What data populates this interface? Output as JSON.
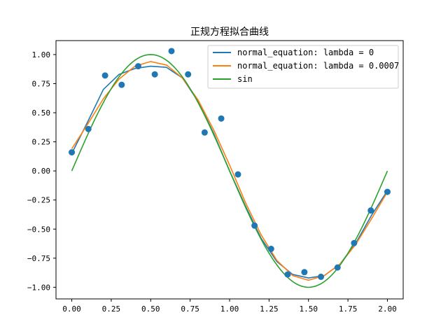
{
  "chart_data": {
    "type": "line",
    "title": "正规方程拟合曲线",
    "xlabel": "",
    "ylabel": "",
    "xlim": [
      -0.1,
      2.1
    ],
    "ylim": [
      -1.1,
      1.12
    ],
    "grid": false,
    "legend_position": "top-right",
    "x_ticks": [
      0.0,
      0.25,
      0.5,
      0.75,
      1.0,
      1.25,
      1.5,
      1.75,
      2.0
    ],
    "x_tick_labels": [
      "0.00",
      "0.25",
      "0.50",
      "0.75",
      "1.00",
      "1.25",
      "1.50",
      "1.75",
      "2.00"
    ],
    "y_ticks": [
      -1.0,
      -0.75,
      -0.5,
      -0.25,
      0.0,
      0.25,
      0.5,
      0.75,
      1.0
    ],
    "y_tick_labels": [
      "−1.00",
      "−0.75",
      "−0.50",
      "−0.25",
      "0.00",
      "0.25",
      "0.50",
      "0.75",
      "1.00"
    ],
    "scatter": {
      "color": "#1f77b4",
      "points": [
        [
          0.0,
          0.16
        ],
        [
          0.105,
          0.36
        ],
        [
          0.211,
          0.82
        ],
        [
          0.316,
          0.74
        ],
        [
          0.421,
          0.9
        ],
        [
          0.526,
          0.83
        ],
        [
          0.632,
          1.03
        ],
        [
          0.737,
          0.83
        ],
        [
          0.842,
          0.33
        ],
        [
          0.947,
          0.45
        ],
        [
          1.053,
          -0.03
        ],
        [
          1.158,
          -0.47
        ],
        [
          1.263,
          -0.67
        ],
        [
          1.368,
          -0.89
        ],
        [
          1.474,
          -0.87
        ],
        [
          1.579,
          -0.91
        ],
        [
          1.684,
          -0.83
        ],
        [
          1.789,
          -0.62
        ],
        [
          1.895,
          -0.34
        ],
        [
          2.0,
          -0.18
        ]
      ]
    },
    "series": [
      {
        "name": "normal_equation: lambda = 0",
        "color": "#1f77b4",
        "x": [
          0.0,
          0.1,
          0.2,
          0.3,
          0.4,
          0.5,
          0.6,
          0.7,
          0.8,
          0.9,
          1.0,
          1.1,
          1.2,
          1.3,
          1.4,
          1.5,
          1.6,
          1.7,
          1.8,
          1.9,
          2.0
        ],
        "y": [
          0.15,
          0.42,
          0.7,
          0.83,
          0.88,
          0.9,
          0.89,
          0.8,
          0.6,
          0.32,
          0.0,
          -0.3,
          -0.58,
          -0.78,
          -0.89,
          -0.92,
          -0.9,
          -0.8,
          -0.62,
          -0.38,
          -0.17
        ]
      },
      {
        "name": "normal_equation: lambda = 0.0007",
        "color": "#ff7f0e",
        "x": [
          0.0,
          0.1,
          0.2,
          0.3,
          0.4,
          0.5,
          0.6,
          0.7,
          0.8,
          0.9,
          1.0,
          1.1,
          1.2,
          1.3,
          1.4,
          1.5,
          1.6,
          1.7,
          1.8,
          1.9,
          2.0
        ],
        "y": [
          0.19,
          0.4,
          0.62,
          0.79,
          0.9,
          0.94,
          0.91,
          0.8,
          0.61,
          0.35,
          0.05,
          -0.27,
          -0.55,
          -0.77,
          -0.9,
          -0.94,
          -0.9,
          -0.8,
          -0.63,
          -0.41,
          -0.18
        ]
      },
      {
        "name": "sin",
        "color": "#2ca02c",
        "function": "sin(pi*x)",
        "x_range": [
          0.0,
          2.0
        ]
      }
    ]
  }
}
